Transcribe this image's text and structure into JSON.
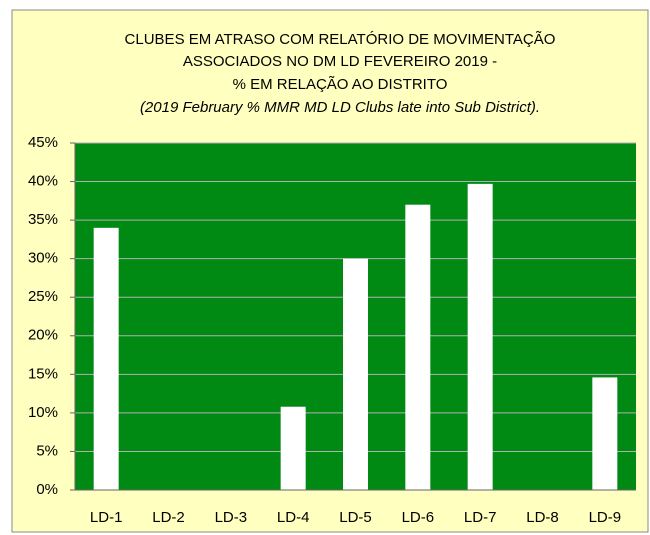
{
  "chart_data": {
    "type": "bar",
    "title": [
      "CLUBES EM ATRASO COM RELATÓRIO DE MOVIMENTAÇÃO",
      "ASSOCIADOS NO DM LD  FEVEREIRO 2019  -",
      "%  EM RELAÇÃO AO DISTRITO"
    ],
    "subtitle": "(2019 February % MMR MD LD Clubs late into Sub District).",
    "categories": [
      "LD-1",
      "LD-2",
      "LD-3",
      "LD-4",
      "LD-5",
      "LD-6",
      "LD-7",
      "LD-8",
      "LD-9"
    ],
    "values": [
      34,
      0,
      0,
      10.8,
      30,
      37,
      39.7,
      0,
      14.6
    ],
    "color": "#ffffff",
    "plot_color": "#008a14",
    "background": "#ffffc0",
    "ylim": [
      0,
      45
    ],
    "yticks": [
      {
        "value": 0,
        "label": "0%"
      },
      {
        "value": 5,
        "label": "5%"
      },
      {
        "value": 10,
        "label": "10%"
      },
      {
        "value": 15,
        "label": "15%"
      },
      {
        "value": 20,
        "label": "20%"
      },
      {
        "value": 25,
        "label": "25%"
      },
      {
        "value": 30,
        "label": "30%"
      },
      {
        "value": 35,
        "label": "35%"
      },
      {
        "value": 40,
        "label": "40%"
      },
      {
        "value": 45,
        "label": "45%"
      }
    ],
    "grid": true
  }
}
